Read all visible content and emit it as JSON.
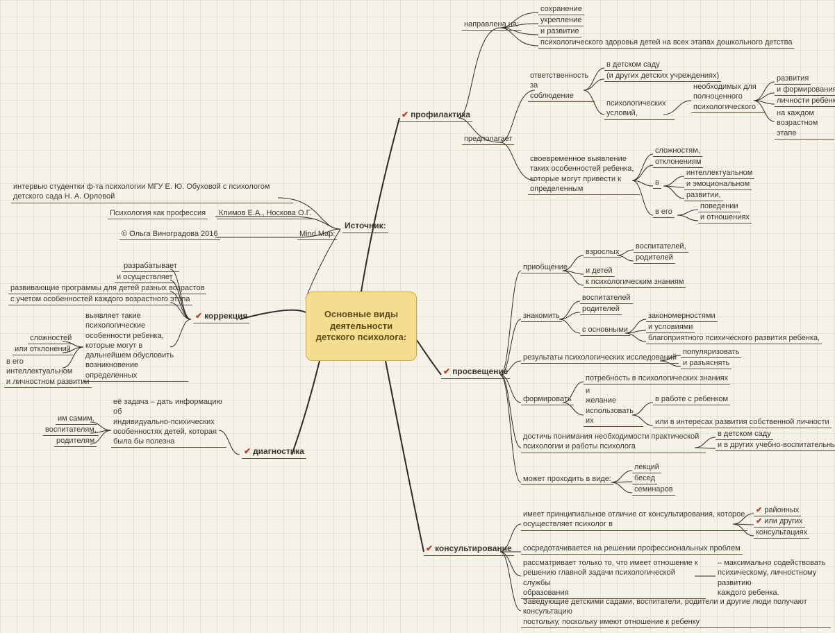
{
  "central": "Основные виды деятельности детского психолога:",
  "colors": {
    "background": "#f5f2e8",
    "grid": "#c8c3b4",
    "central_fill": "#f5dd8f",
    "central_border": "#c8a84a",
    "central_text": "#5a4a1a",
    "node_text": "#3a3630",
    "underline": "#5a4a3a",
    "line": "#2a2a2a",
    "checkmark": "#c0392b"
  },
  "structure_type": "mindmap",
  "font": {
    "family": "Arial",
    "central_size": 13,
    "branch_size": 12,
    "node_size": 11
  },
  "branches": {
    "source": {
      "label": "Источник:",
      "children": [
        {
          "label": "интервью студентки ф-та психологии МГУ Е. Ю. Обуховой с психологом детского сада Н. А. Орловой"
        },
        {
          "label": "Психология как профессия",
          "sub": "Климов Е.А., Носкова О.Г."
        },
        {
          "label": "© Ольга Виноградова 2016",
          "sub": "Mind Map:"
        }
      ]
    },
    "prophylaxis": {
      "label": "профилактика",
      "children": [
        {
          "label": "направлена на:",
          "sub": [
            "сохранение",
            "укрепление",
            "и развитие",
            "психологического здоровья детей на всех этапах дошкольного детства"
          ]
        },
        {
          "label": "предполагает",
          "sub": [
            {
              "label": "ответственность за соблюдение",
              "sub": [
                "в детском саду",
                "(и других детских учреждениях)",
                {
                  "label": "психологических условий,",
                  "sub": [
                    {
                      "label": "необходимых для полноценного психологического",
                      "sub": [
                        "развития",
                        "и формирования",
                        "личности ребенка",
                        "на каждом возрастном этапе"
                      ]
                    }
                  ]
                }
              ]
            },
            {
              "label": "своевременное выявление таких особенностей ребенка, которые могут привести к определенным",
              "sub": [
                "сложностям,",
                "отклонениям",
                {
                  "label": "в",
                  "sub": [
                    "интеллектуальном",
                    "и эмоциональном",
                    "развитии,"
                  ]
                },
                {
                  "label": "в его",
                  "sub": [
                    "поведении",
                    "и отношениях"
                  ]
                }
              ]
            }
          ]
        }
      ]
    },
    "correction": {
      "label": "коррекция",
      "children": [
        {
          "label": "разрабатывает"
        },
        {
          "label": "и осуществляет"
        },
        {
          "label": "развивающие программы для детей разных возрастов"
        },
        {
          "label": "с учетом особенностей каждого возрастного этапа"
        },
        {
          "label": "выявляет такие психологические особенности ребенка, которые могут в дальнейшем обусловить возникновение определенных",
          "sub": [
            "сложностей",
            "или отклонений",
            "в его интеллектуальном и личностном развитии"
          ]
        }
      ]
    },
    "diagnostics": {
      "label": "диагностика",
      "children": [
        {
          "label": "её задача – дать информацию об индивидуально-психических особенностях детей, которая была бы полезна",
          "sub": [
            "им самим,",
            "воспитателям,",
            "родителям"
          ]
        }
      ]
    },
    "education": {
      "label": "просвещение",
      "children": [
        {
          "label": "приобщение",
          "sub": [
            {
              "label": "взрослых",
              "sub": [
                "воспитателей,",
                "родителей"
              ]
            },
            "и детей",
            "к психологическим знаниям"
          ]
        },
        {
          "label": "знакомить",
          "sub": [
            "воспитателей",
            "родителей",
            {
              "label": "с основными",
              "sub": [
                "закономерностями",
                "и условиями",
                "благоприятного психического развития ребенка,"
              ]
            }
          ]
        },
        {
          "label": "результаты психологических исследований",
          "sub": [
            "популяризовать",
            "и разъяснять"
          ]
        },
        {
          "label": "формировать",
          "sub": [
            "потребность в психологических знаниях",
            {
              "label": "и желание использовать их",
              "sub": [
                "в работе с ребенком",
                "или в интересах развития собственной личности"
              ]
            }
          ]
        },
        {
          "label": "достичь понимания необходимости практической психологии и работы психолога",
          "sub": [
            "в детском саду",
            "и в других учебно-воспитательных учреждениях"
          ]
        },
        {
          "label": "может проходить в виде:",
          "sub": [
            "лекций",
            "бесед",
            "семинаров"
          ]
        }
      ]
    },
    "consulting": {
      "label": "консультирование",
      "children": [
        {
          "label": "имеет принципиальное отличие от консультирования, которое осуществляет психолог в",
          "sub": [
            "районных",
            "или других",
            "консультациях"
          ]
        },
        {
          "label": "сосредотачивается на решении профессиональных проблем"
        },
        {
          "label": "рассматривает только то, что имеет отношение к решению главной задачи психологической службы образования",
          "note": "– максимально содействовать психическому, личностному развитию каждого ребенка."
        },
        {
          "label": "Заведующие детскими садами, воспитатели, родители и другие люди получают консультацию постольку, поскольку имеют отношение к ребенку"
        }
      ]
    }
  },
  "flat_nodes": {
    "src_label": "Источник:",
    "src_mindmap": "Mind Map:",
    "src_interview": "интервью студентки ф-та психологии МГУ Е. Ю. Обуховой с психологом\nдетского сада Н. А. Орловой",
    "src_prof": "Психология как профессия",
    "src_authors": "Климов Е.А., Носкова О.Г.",
    "src_copy": "© Ольга Виноградова 2016",
    "b_proph": "профилактика",
    "b_corr": "коррекция",
    "b_diag": "диагностика",
    "b_edu": "просвещение",
    "b_cons": "консультирование",
    "p_direct": "направлена на:",
    "p_preserve": "сохранение",
    "p_strength": "укрепление",
    "p_develop": "и развитие",
    "p_psyhealth": "психологического здоровья детей на всех этапах дошкольного детства",
    "p_assumes": "предполагает",
    "p_responsib": "ответственность\nза\nсоблюдение",
    "p_kindergarten": "в детском саду",
    "p_otherinst": "(и других детских учреждениях)",
    "p_psycond": "психологических\nусловий,",
    "p_needed": "необходимых для\nполноценного\nпсихологического",
    "p_dev2": "развития",
    "p_form": "и формирования",
    "p_pers": "личности ребенка",
    "p_stage": "на каждом\nвозрастном этапе",
    "p_timely": "своевременное выявление\nтаких особенностей ребенка,\nкоторые могут привести к\nопределенным",
    "p_compl": "сложностям,",
    "p_dev3": "отклонениям",
    "p_in": "в",
    "p_intel": "интеллектуальном",
    "p_emot": "и эмоциональном",
    "p_razv": "развитии,",
    "p_inhis": "в его",
    "p_behav": "поведении",
    "p_rel": "и отношениях",
    "c_dev": "разрабатывает",
    "c_impl": "и осуществляет",
    "c_prog": "развивающие программы для детей разных возрастов",
    "c_acct": "с учетом особенностей каждого возрастного этапа",
    "c_reveal": "выявляет такие\nпсихологические\nособенности ребенка,\nкоторые могут в\nдальнейшем обусловить\nвозникновение\nопределенных",
    "c_compl": "сложностей",
    "c_dev2": "или отклонений",
    "c_intel": "в его интеллектуальном\nи личностном развитии",
    "d_task": "её задача – дать информацию\nоб\nиндивидуально-психических\nособенностях детей, которая\nбыла бы полезна",
    "d_self": "им самим,",
    "d_educ": "воспитателям,",
    "d_parent": "родителям",
    "e_attach": "приобщение",
    "e_adults": "взрослых",
    "e_educators": "воспитателей,",
    "e_parents": "родителей",
    "e_children": "и детей",
    "e_toknow": "к психологическим знаниям",
    "e_acq": "знакомить",
    "e_educ2": "воспитателей",
    "e_par2": "родителей",
    "e_main": "с основными",
    "e_regul": "закономерностями",
    "e_cond": "и условиями",
    "e_favdev": "благоприятного психического развития ребенка,",
    "e_results": "результаты психологических исследований",
    "e_popular": "популяризовать",
    "e_explain": "и разъяснять",
    "e_form": "формировать",
    "e_need": "потребность в психологических знаниях",
    "e_desire": "и\nжелание\nиспользовать\nих",
    "e_work": "в работе с ребенком",
    "e_selfdev": "или в интересах развития собственной личности",
    "e_understand": "достичь понимания необходимости практической\nпсихологии и работы психолога",
    "e_dsad": "в детском саду",
    "e_other": "и в других учебно-воспитательных учреждениях",
    "e_mayform": "может проходить в виде:",
    "e_lect": "лекций",
    "e_talk": "бесед",
    "e_sem": "семинаров",
    "n_princ": "имеет принципиальное отличие от консультирования, которое\nосуществляет психолог в",
    "n_district": "районных",
    "n_orother": "или других",
    "n_consult": "консультациях",
    "n_focus": "сосредотачивается на решении профессиональных проблем",
    "n_consider": "рассматривает только то, что имеет отношение к\nрешению главной задачи психологической службы\nобразования",
    "n_note": "– максимально содействовать\nпсихическому, личностному развитию\nкаждого ребенка.",
    "n_heads": "Заведующие детскими садами, воспитатели, родители и другие люди получают консультацию\nпостольку, поскольку имеют отношение к ребенку"
  }
}
